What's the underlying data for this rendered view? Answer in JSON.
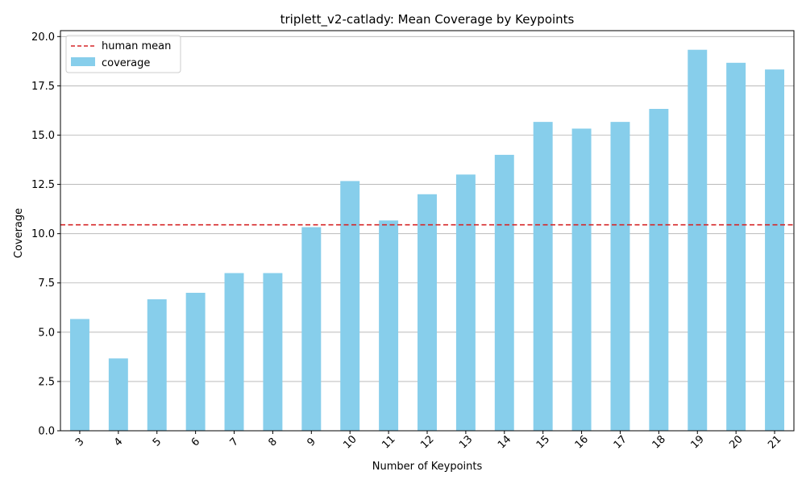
{
  "chart_data": {
    "type": "bar",
    "title": "triplett_v2-catlady: Mean Coverage by Keypoints",
    "xlabel": "Number of Keypoints",
    "ylabel": "Coverage",
    "categories": [
      "3",
      "4",
      "5",
      "6",
      "7",
      "8",
      "9",
      "10",
      "11",
      "12",
      "13",
      "14",
      "15",
      "16",
      "17",
      "18",
      "19",
      "20",
      "21"
    ],
    "series": [
      {
        "name": "coverage",
        "values": [
          5.67,
          3.67,
          6.67,
          7.0,
          8.0,
          8.0,
          10.33,
          12.67,
          10.67,
          12.0,
          13.0,
          14.0,
          15.67,
          15.33,
          15.67,
          16.33,
          19.33,
          18.67,
          18.33
        ]
      }
    ],
    "reference_line": {
      "name": "human mean",
      "value": 10.45,
      "style": "dashed",
      "color": "#d62728"
    },
    "ylim": [
      0,
      20.3
    ],
    "yticks": [
      "0.0",
      "2.5",
      "5.0",
      "7.5",
      "10.0",
      "12.5",
      "15.0",
      "17.5",
      "20.0"
    ],
    "grid": "horizontal",
    "legend_position": "top-left",
    "colors": {
      "bar": "#87ceeb",
      "reference": "#d62728",
      "grid": "#b0b0b0"
    }
  }
}
